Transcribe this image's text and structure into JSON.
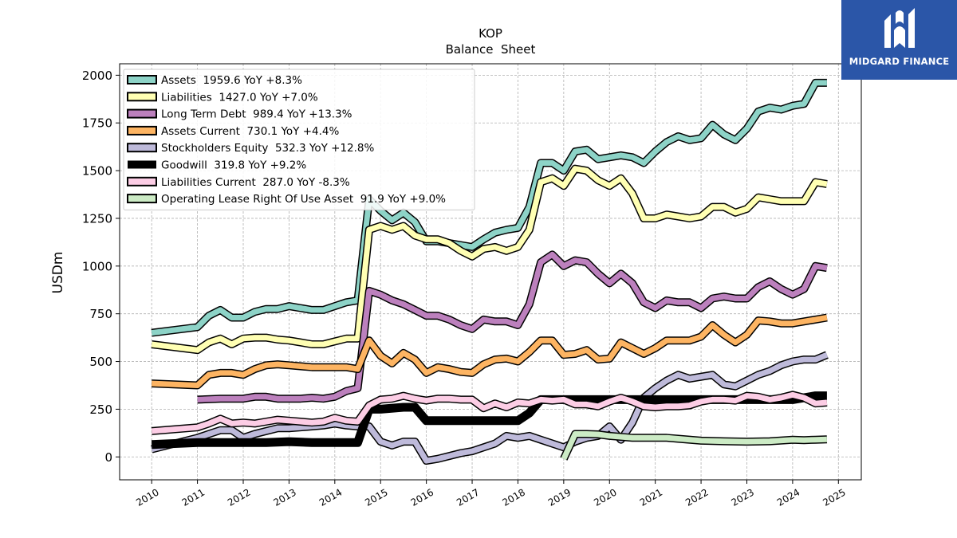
{
  "chart_data": {
    "type": "line",
    "title": "KOP",
    "subtitle": "Balance  Sheet",
    "ylabel": "USDm",
    "xlabel": "",
    "ylim": [
      -120,
      2060
    ],
    "xlim": [
      2009.3,
      2025.5
    ],
    "yticks": [
      0,
      250,
      500,
      750,
      1000,
      1250,
      1500,
      1750,
      2000
    ],
    "xticks": [
      "2010",
      "2011",
      "2012",
      "2013",
      "2014",
      "2015",
      "2016",
      "2017",
      "2018",
      "2019",
      "2020",
      "2021",
      "2022",
      "2023",
      "2024",
      "2025"
    ],
    "grid": true,
    "legend_position": "top-left",
    "series": [
      {
        "name": "Assets  1959.6 YoY +8.3%",
        "color": "#8dd3c7",
        "width": 7,
        "x": [
          2010.0,
          2011.0,
          2011.25,
          2011.5,
          2011.75,
          2012.0,
          2012.25,
          2012.5,
          2012.75,
          2013.0,
          2013.25,
          2013.5,
          2013.75,
          2014.0,
          2014.25,
          2014.5,
          2014.75,
          2015.0,
          2015.25,
          2015.5,
          2015.75,
          2016.0,
          2016.25,
          2016.5,
          2016.75,
          2017.0,
          2017.25,
          2017.5,
          2017.75,
          2018.0,
          2018.25,
          2018.5,
          2018.75,
          2019.0,
          2019.25,
          2019.5,
          2019.75,
          2020.0,
          2020.25,
          2020.5,
          2020.75,
          2021.0,
          2021.25,
          2021.5,
          2021.75,
          2022.0,
          2022.25,
          2022.5,
          2022.75,
          2023.0,
          2023.25,
          2023.5,
          2023.75,
          2024.0,
          2024.25,
          2024.5,
          2024.75
        ],
        "values": [
          650,
          680,
          740,
          770,
          730,
          730,
          760,
          775,
          775,
          790,
          780,
          770,
          770,
          790,
          810,
          820,
          1350,
          1290,
          1240,
          1280,
          1230,
          1130,
          1130,
          1120,
          1110,
          1100,
          1140,
          1175,
          1190,
          1200,
          1310,
          1540,
          1540,
          1500,
          1600,
          1610,
          1560,
          1570,
          1580,
          1570,
          1540,
          1600,
          1650,
          1680,
          1660,
          1670,
          1740,
          1690,
          1660,
          1720,
          1810,
          1830,
          1820,
          1840,
          1850,
          1960,
          1960
        ]
      },
      {
        "name": "Liabilities  1427.0 YoY +7.0%",
        "color": "#ffffb3",
        "width": 7,
        "x": [
          2010.0,
          2011.0,
          2011.25,
          2011.5,
          2011.75,
          2012.0,
          2012.25,
          2012.5,
          2012.75,
          2013.0,
          2013.25,
          2013.5,
          2013.75,
          2014.0,
          2014.25,
          2014.5,
          2014.75,
          2015.0,
          2015.25,
          2015.5,
          2015.75,
          2016.0,
          2016.25,
          2016.5,
          2016.75,
          2017.0,
          2017.25,
          2017.5,
          2017.75,
          2018.0,
          2018.25,
          2018.5,
          2018.75,
          2019.0,
          2019.25,
          2019.5,
          2019.75,
          2020.0,
          2020.25,
          2020.5,
          2020.75,
          2021.0,
          2021.25,
          2021.5,
          2021.75,
          2022.0,
          2022.25,
          2022.5,
          2022.75,
          2023.0,
          2023.25,
          2023.5,
          2023.75,
          2024.0,
          2024.25,
          2024.5,
          2024.75
        ],
        "values": [
          590,
          560,
          600,
          620,
          590,
          620,
          625,
          625,
          615,
          610,
          600,
          590,
          590,
          605,
          620,
          620,
          1190,
          1210,
          1190,
          1210,
          1160,
          1140,
          1140,
          1120,
          1080,
          1050,
          1090,
          1100,
          1080,
          1100,
          1190,
          1440,
          1460,
          1420,
          1510,
          1500,
          1450,
          1420,
          1460,
          1380,
          1250,
          1250,
          1270,
          1260,
          1250,
          1260,
          1310,
          1310,
          1280,
          1300,
          1360,
          1350,
          1340,
          1340,
          1340,
          1440,
          1430
        ]
      },
      {
        "name": "Long Term Debt  989.4 YoY +13.3%",
        "color": "#bc80bd",
        "width": 7,
        "x": [
          2011.0,
          2011.5,
          2012.0,
          2012.25,
          2012.5,
          2012.75,
          2013.0,
          2013.25,
          2013.5,
          2013.75,
          2014.0,
          2014.25,
          2014.5,
          2014.75,
          2015.0,
          2015.25,
          2015.5,
          2015.75,
          2016.0,
          2016.25,
          2016.5,
          2016.75,
          2017.0,
          2017.25,
          2017.5,
          2017.75,
          2018.0,
          2018.25,
          2018.5,
          2018.75,
          2019.0,
          2019.25,
          2019.5,
          2019.75,
          2020.0,
          2020.25,
          2020.5,
          2020.75,
          2021.0,
          2021.25,
          2021.5,
          2021.75,
          2022.0,
          2022.25,
          2022.5,
          2022.75,
          2023.0,
          2023.25,
          2023.5,
          2023.75,
          2024.0,
          2024.25,
          2024.5,
          2024.75
        ],
        "values": [
          300,
          305,
          305,
          315,
          315,
          305,
          305,
          305,
          310,
          305,
          315,
          345,
          360,
          870,
          850,
          820,
          800,
          770,
          740,
          740,
          720,
          690,
          670,
          720,
          710,
          710,
          690,
          800,
          1020,
          1060,
          1000,
          1030,
          1020,
          960,
          910,
          960,
          910,
          810,
          780,
          820,
          810,
          810,
          780,
          830,
          840,
          830,
          830,
          890,
          920,
          880,
          850,
          880,
          1000,
          990
        ]
      },
      {
        "name": "Assets Current  730.1 YoY +4.4%",
        "color": "#fdb462",
        "width": 7,
        "x": [
          2010.0,
          2011.0,
          2011.25,
          2011.5,
          2011.75,
          2012.0,
          2012.25,
          2012.5,
          2012.75,
          2013.0,
          2013.25,
          2013.5,
          2013.75,
          2014.0,
          2014.25,
          2014.5,
          2014.75,
          2015.0,
          2015.25,
          2015.5,
          2015.75,
          2016.0,
          2016.25,
          2016.5,
          2016.75,
          2017.0,
          2017.25,
          2017.5,
          2017.75,
          2018.0,
          2018.25,
          2018.5,
          2018.75,
          2019.0,
          2019.25,
          2019.5,
          2019.75,
          2020.0,
          2020.25,
          2020.5,
          2020.75,
          2021.0,
          2021.25,
          2021.5,
          2021.75,
          2022.0,
          2022.25,
          2022.5,
          2022.75,
          2023.0,
          2023.25,
          2023.5,
          2023.75,
          2024.0,
          2024.25,
          2024.5,
          2024.75
        ],
        "values": [
          385,
          375,
          430,
          440,
          440,
          430,
          460,
          480,
          485,
          480,
          475,
          470,
          470,
          470,
          470,
          460,
          610,
          530,
          490,
          545,
          510,
          440,
          470,
          460,
          445,
          440,
          485,
          510,
          515,
          500,
          550,
          610,
          610,
          535,
          540,
          560,
          510,
          515,
          600,
          570,
          540,
          570,
          610,
          610,
          610,
          630,
          690,
          640,
          600,
          640,
          715,
          710,
          700,
          700,
          710,
          720,
          730
        ]
      },
      {
        "name": "Stockholders Equity  532.3 YoY +12.8%",
        "color": "#bebada",
        "width": 7,
        "x": [
          2010.0,
          2011.0,
          2011.25,
          2011.5,
          2011.75,
          2012.0,
          2012.25,
          2012.5,
          2012.75,
          2013.0,
          2013.25,
          2013.5,
          2013.75,
          2014.0,
          2014.25,
          2014.5,
          2014.75,
          2015.0,
          2015.25,
          2015.5,
          2015.75,
          2016.0,
          2016.25,
          2016.5,
          2016.75,
          2017.0,
          2017.25,
          2017.5,
          2017.75,
          2018.0,
          2018.25,
          2018.5,
          2018.75,
          2019.0,
          2019.25,
          2019.5,
          2019.75,
          2020.0,
          2020.25,
          2020.5,
          2020.75,
          2021.0,
          2021.25,
          2021.5,
          2021.75,
          2022.0,
          2022.25,
          2022.5,
          2022.75,
          2023.0,
          2023.25,
          2023.5,
          2023.75,
          2024.0,
          2024.25,
          2024.5,
          2024.75
        ],
        "values": [
          40,
          100,
          120,
          140,
          140,
          100,
          120,
          135,
          150,
          150,
          155,
          160,
          165,
          175,
          165,
          160,
          160,
          80,
          60,
          80,
          80,
          -20,
          -10,
          5,
          20,
          30,
          50,
          70,
          110,
          100,
          110,
          90,
          70,
          50,
          80,
          100,
          110,
          160,
          90,
          180,
          310,
          360,
          400,
          430,
          410,
          420,
          430,
          380,
          370,
          400,
          430,
          450,
          480,
          500,
          510,
          510,
          535
        ]
      },
      {
        "name": "Goodwill  319.8 YoY +9.2%",
        "color": "#000000",
        "width": 9,
        "x": [
          2010.0,
          2011.0,
          2011.5,
          2012.0,
          2012.5,
          2013.0,
          2013.5,
          2014.0,
          2014.5,
          2014.75,
          2015.0,
          2015.5,
          2015.75,
          2016.0,
          2016.5,
          2017.0,
          2017.5,
          2018.0,
          2018.25,
          2018.5,
          2019.0,
          2020.0,
          2020.5,
          2021.0,
          2022.0,
          2023.0,
          2024.0,
          2024.5,
          2024.75
        ],
        "values": [
          65,
          75,
          75,
          75,
          75,
          80,
          75,
          75,
          75,
          250,
          250,
          260,
          260,
          190,
          190,
          190,
          190,
          190,
          230,
          300,
          300,
          300,
          300,
          300,
          300,
          300,
          300,
          320,
          320
        ]
      },
      {
        "name": "Liabilities Current  287.0 YoY -8.3%",
        "color": "#fccde5",
        "width": 7,
        "x": [
          2010.0,
          2011.0,
          2011.25,
          2011.5,
          2011.75,
          2012.0,
          2012.25,
          2012.5,
          2012.75,
          2013.0,
          2013.25,
          2013.5,
          2013.75,
          2014.0,
          2014.25,
          2014.5,
          2014.75,
          2015.0,
          2015.25,
          2015.5,
          2015.75,
          2016.0,
          2016.25,
          2016.5,
          2016.75,
          2017.0,
          2017.25,
          2017.5,
          2017.75,
          2018.0,
          2018.25,
          2018.5,
          2018.75,
          2019.0,
          2019.25,
          2019.5,
          2019.75,
          2020.0,
          2020.25,
          2020.5,
          2020.75,
          2021.0,
          2021.25,
          2021.5,
          2021.75,
          2022.0,
          2022.25,
          2022.5,
          2022.75,
          2023.0,
          2023.25,
          2023.5,
          2023.75,
          2024.0,
          2024.25,
          2024.5,
          2024.75
        ],
        "values": [
          135,
          155,
          175,
          200,
          175,
          180,
          175,
          185,
          195,
          190,
          185,
          180,
          185,
          205,
          190,
          185,
          270,
          300,
          305,
          320,
          305,
          295,
          305,
          305,
          300,
          300,
          255,
          280,
          260,
          285,
          280,
          300,
          295,
          300,
          275,
          275,
          265,
          290,
          310,
          290,
          265,
          260,
          265,
          265,
          270,
          290,
          300,
          300,
          295,
          320,
          315,
          300,
          310,
          325,
          310,
          280,
          285
        ]
      },
      {
        "name": "Operating Lease Right Of Use Asset  91.9 YoY +9.0%",
        "color": "#ccebc5",
        "width": 7,
        "x": [
          2019.0,
          2019.25,
          2019.5,
          2019.75,
          2020.0,
          2020.5,
          2021.0,
          2021.25,
          2021.5,
          2022.0,
          2022.5,
          2023.0,
          2023.5,
          2024.0,
          2024.25,
          2024.5,
          2024.75
        ],
        "values": [
          -10,
          120,
          120,
          118,
          110,
          100,
          100,
          100,
          95,
          85,
          82,
          80,
          82,
          90,
          88,
          90,
          92
        ]
      }
    ]
  },
  "logo": {
    "text": "MIDGARD FINANCE",
    "bg_color": "#2b56a8"
  }
}
